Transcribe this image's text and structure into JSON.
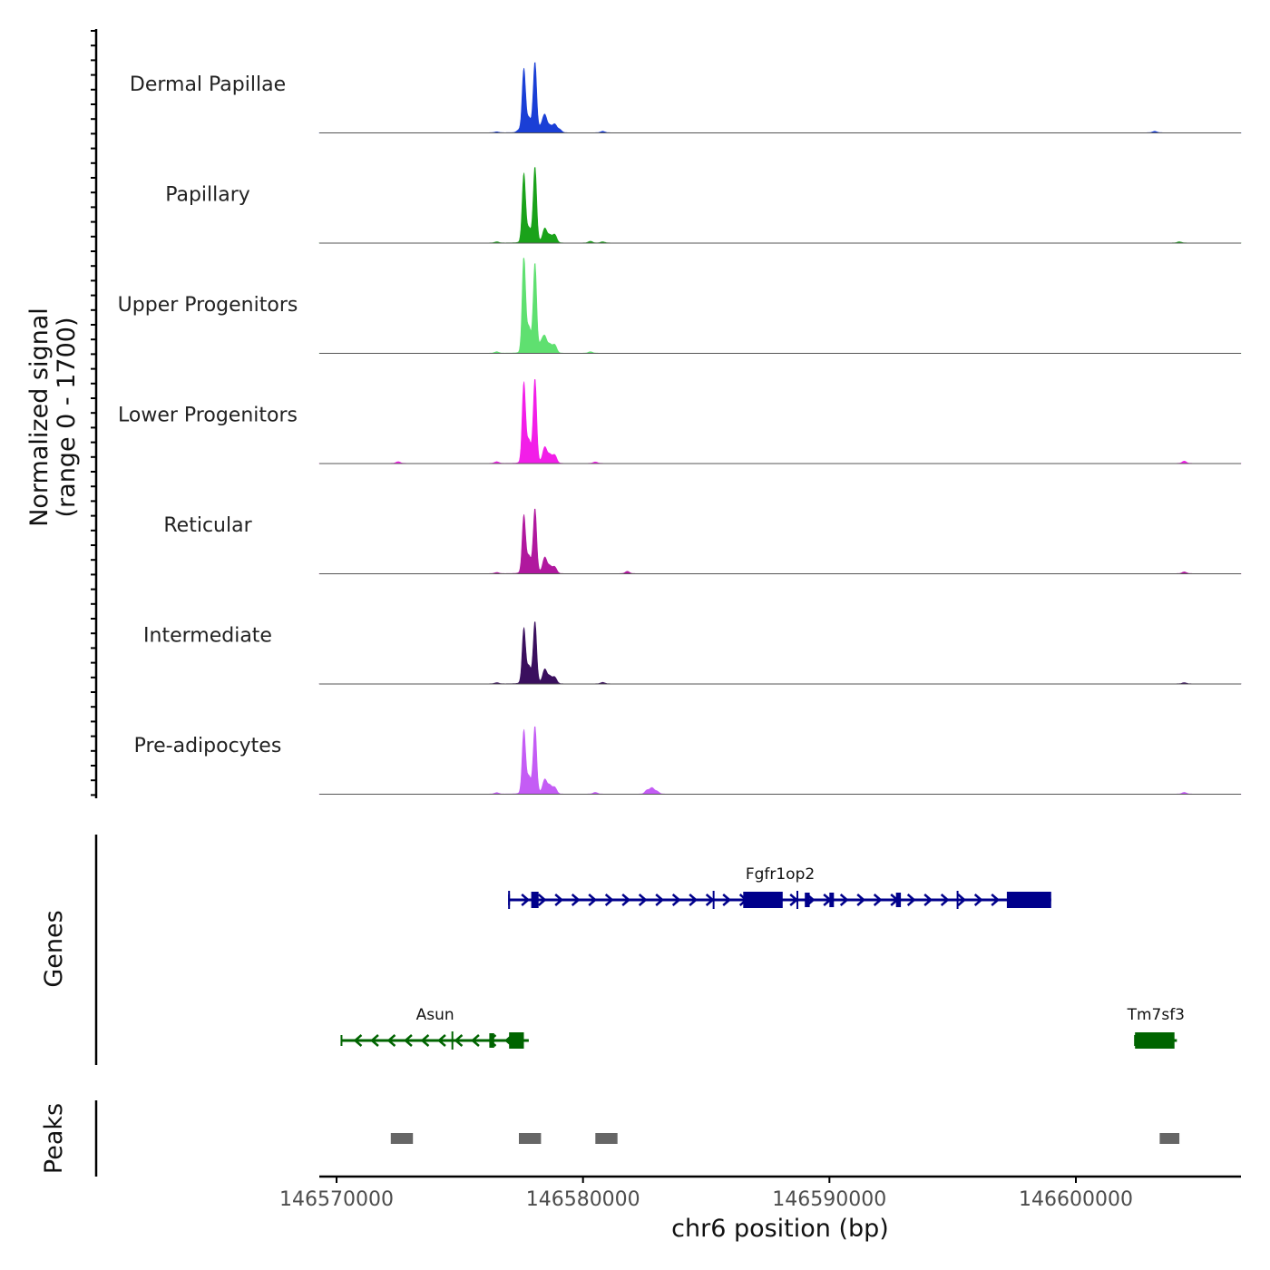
{
  "chart_data": {
    "type": "area",
    "title": "",
    "coverage": {
      "ylabel_line1": "Normalized signal",
      "ylabel_line2": "(range 0 - 1700)",
      "ylim": [
        0,
        1700
      ],
      "xlim": [
        146569300,
        146606700
      ],
      "tracks": [
        {
          "name": "Dermal Papillae",
          "color": "#1a3fd6",
          "peaks": [
            [
              146576500,
              15
            ],
            [
              146577400,
              40
            ],
            [
              146577600,
              1100
            ],
            [
              146577800,
              200
            ],
            [
              146578050,
              1200
            ],
            [
              146578300,
              80
            ],
            [
              146578450,
              300
            ],
            [
              146578650,
              120
            ],
            [
              146578850,
              150
            ],
            [
              146579050,
              60
            ],
            [
              146580800,
              25
            ],
            [
              146603200,
              25
            ]
          ]
        },
        {
          "name": "Papillary",
          "color": "#1aa21a",
          "peaks": [
            [
              146576500,
              20
            ],
            [
              146577600,
              1200
            ],
            [
              146577800,
              200
            ],
            [
              146578050,
              1300
            ],
            [
              146578450,
              250
            ],
            [
              146578650,
              130
            ],
            [
              146578850,
              150
            ],
            [
              146580300,
              30
            ],
            [
              146580800,
              20
            ],
            [
              146604200,
              20
            ]
          ]
        },
        {
          "name": "Upper Progenitors",
          "color": "#5fe070",
          "peaks": [
            [
              146576500,
              25
            ],
            [
              146577600,
              1700
            ],
            [
              146577800,
              400
            ],
            [
              146578050,
              1550
            ],
            [
              146578300,
              150
            ],
            [
              146578450,
              270
            ],
            [
              146578650,
              150
            ],
            [
              146578850,
              150
            ],
            [
              146580300,
              25
            ]
          ]
        },
        {
          "name": "Lower Progenitors",
          "color": "#f21ee8",
          "peaks": [
            [
              146572500,
              30
            ],
            [
              146576500,
              30
            ],
            [
              146577600,
              1400
            ],
            [
              146577800,
              350
            ],
            [
              146578050,
              1450
            ],
            [
              146578450,
              280
            ],
            [
              146578650,
              150
            ],
            [
              146578850,
              150
            ],
            [
              146580500,
              25
            ],
            [
              146604400,
              40
            ]
          ]
        },
        {
          "name": "Reticular",
          "color": "#b0189e",
          "peaks": [
            [
              146576500,
              20
            ],
            [
              146577600,
              1000
            ],
            [
              146577800,
              250
            ],
            [
              146578050,
              1100
            ],
            [
              146578450,
              280
            ],
            [
              146578650,
              130
            ],
            [
              146578850,
              120
            ],
            [
              146581800,
              40
            ],
            [
              146604400,
              30
            ]
          ]
        },
        {
          "name": "Intermediate",
          "color": "#3a0f5e",
          "peaks": [
            [
              146576500,
              20
            ],
            [
              146577600,
              950
            ],
            [
              146577800,
              250
            ],
            [
              146578050,
              1050
            ],
            [
              146578450,
              250
            ],
            [
              146578650,
              130
            ],
            [
              146578850,
              120
            ],
            [
              146580800,
              25
            ],
            [
              146604400,
              20
            ]
          ]
        },
        {
          "name": "Pre-adipocytes",
          "color": "#c45cf5",
          "peaks": [
            [
              146576500,
              25
            ],
            [
              146577600,
              1100
            ],
            [
              146577800,
              250
            ],
            [
              146578050,
              1150
            ],
            [
              146578450,
              250
            ],
            [
              146578650,
              150
            ],
            [
              146578850,
              120
            ],
            [
              146580500,
              30
            ],
            [
              146582600,
              70
            ],
            [
              146582800,
              110
            ],
            [
              146583000,
              50
            ],
            [
              146604400,
              30
            ]
          ]
        }
      ]
    },
    "genes": {
      "ylabel": "Genes",
      "items": [
        {
          "name": "Fgfr1op2",
          "color": "#00008b",
          "strand": "+",
          "row": 1,
          "start": 146577000,
          "end": 146599000,
          "exons": [
            [
              146577900,
              146578200,
              "thick"
            ],
            [
              146586500,
              146588100,
              "thick"
            ],
            [
              146597200,
              146599000,
              "thick"
            ],
            [
              146589000,
              146589200,
              "thin"
            ],
            [
              146590000,
              146590150,
              "thin"
            ],
            [
              146592700,
              146592900,
              "thin"
            ]
          ],
          "marks": [
            146577000,
            146585300,
            146588700,
            146595200
          ]
        },
        {
          "name": "Asun",
          "color": "#006400",
          "strand": "-",
          "row": 2,
          "start": 146570200,
          "end": 146577800,
          "exons": [
            [
              146577000,
              146577600,
              "thick"
            ],
            [
              146576200,
              146576400,
              "thin"
            ]
          ],
          "marks": [
            146574700
          ]
        },
        {
          "name": "Tm7sf3",
          "color": "#006400",
          "strand": "+",
          "row": 2,
          "start": 146602400,
          "end": 146604100,
          "exons": [
            [
              146602400,
              146604000,
              "thick"
            ]
          ],
          "marks": []
        }
      ]
    },
    "peaks": {
      "ylabel": "Peaks",
      "color": "#666666",
      "regions": [
        [
          146572200,
          146573100
        ],
        [
          146577400,
          146578300
        ],
        [
          146580500,
          146581400
        ],
        [
          146603400,
          146604200
        ]
      ]
    },
    "x_axis": {
      "xlabel": "chr6 position (bp)",
      "ticks": [
        146570000,
        146580000,
        146590000,
        146600000
      ],
      "tick_labels": [
        "146570000",
        "146580000",
        "146590000",
        "146600000"
      ]
    }
  }
}
